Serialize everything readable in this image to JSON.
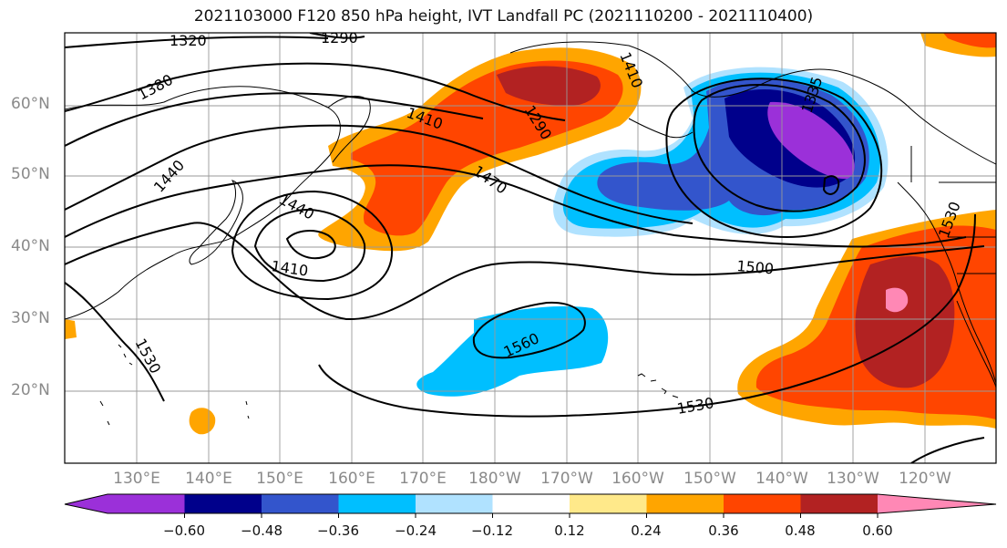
{
  "title": "2021103000 F120 850 hPa height, IVT Landfall PC (2021110200 - 2021110400)",
  "lat_labels": [
    "60°N",
    "50°N",
    "40°N",
    "30°N",
    "20°N"
  ],
  "lon_labels": [
    "130°E",
    "140°E",
    "150°E",
    "160°E",
    "170°E",
    "180°W",
    "170°W",
    "160°W",
    "150°W",
    "140°W",
    "130°W",
    "120°W"
  ],
  "contour_labels": [
    "1320",
    "1290",
    "1380",
    "1410",
    "1290",
    "1440",
    "1470",
    "1440",
    "1410",
    "1500",
    "1560",
    "1530",
    "1530",
    "1530",
    "1335",
    "1410"
  ],
  "colorbar": {
    "ticks": [
      "−0.60",
      "−0.48",
      "−0.36",
      "−0.24",
      "−0.12",
      "0.12",
      "0.24",
      "0.36",
      "0.48",
      "0.60"
    ],
    "colors": [
      "#9b30d9",
      "#00008b",
      "#3355cc",
      "#00bfff",
      "#b0e2ff",
      "#ffffff",
      "#ffe98a",
      "#ffa500",
      "#ff4500",
      "#b22222",
      "#ff88b5"
    ]
  },
  "map_style": {
    "positive_colors": [
      "#ffe98a",
      "#ffa500",
      "#ff4500",
      "#b22222",
      "#ff88b5"
    ],
    "negative_colors": [
      "#b0e2ff",
      "#00bfff",
      "#3355cc",
      "#00008b",
      "#9b30d9"
    ],
    "contour_color": "#000000",
    "grid_color": "#999999"
  }
}
